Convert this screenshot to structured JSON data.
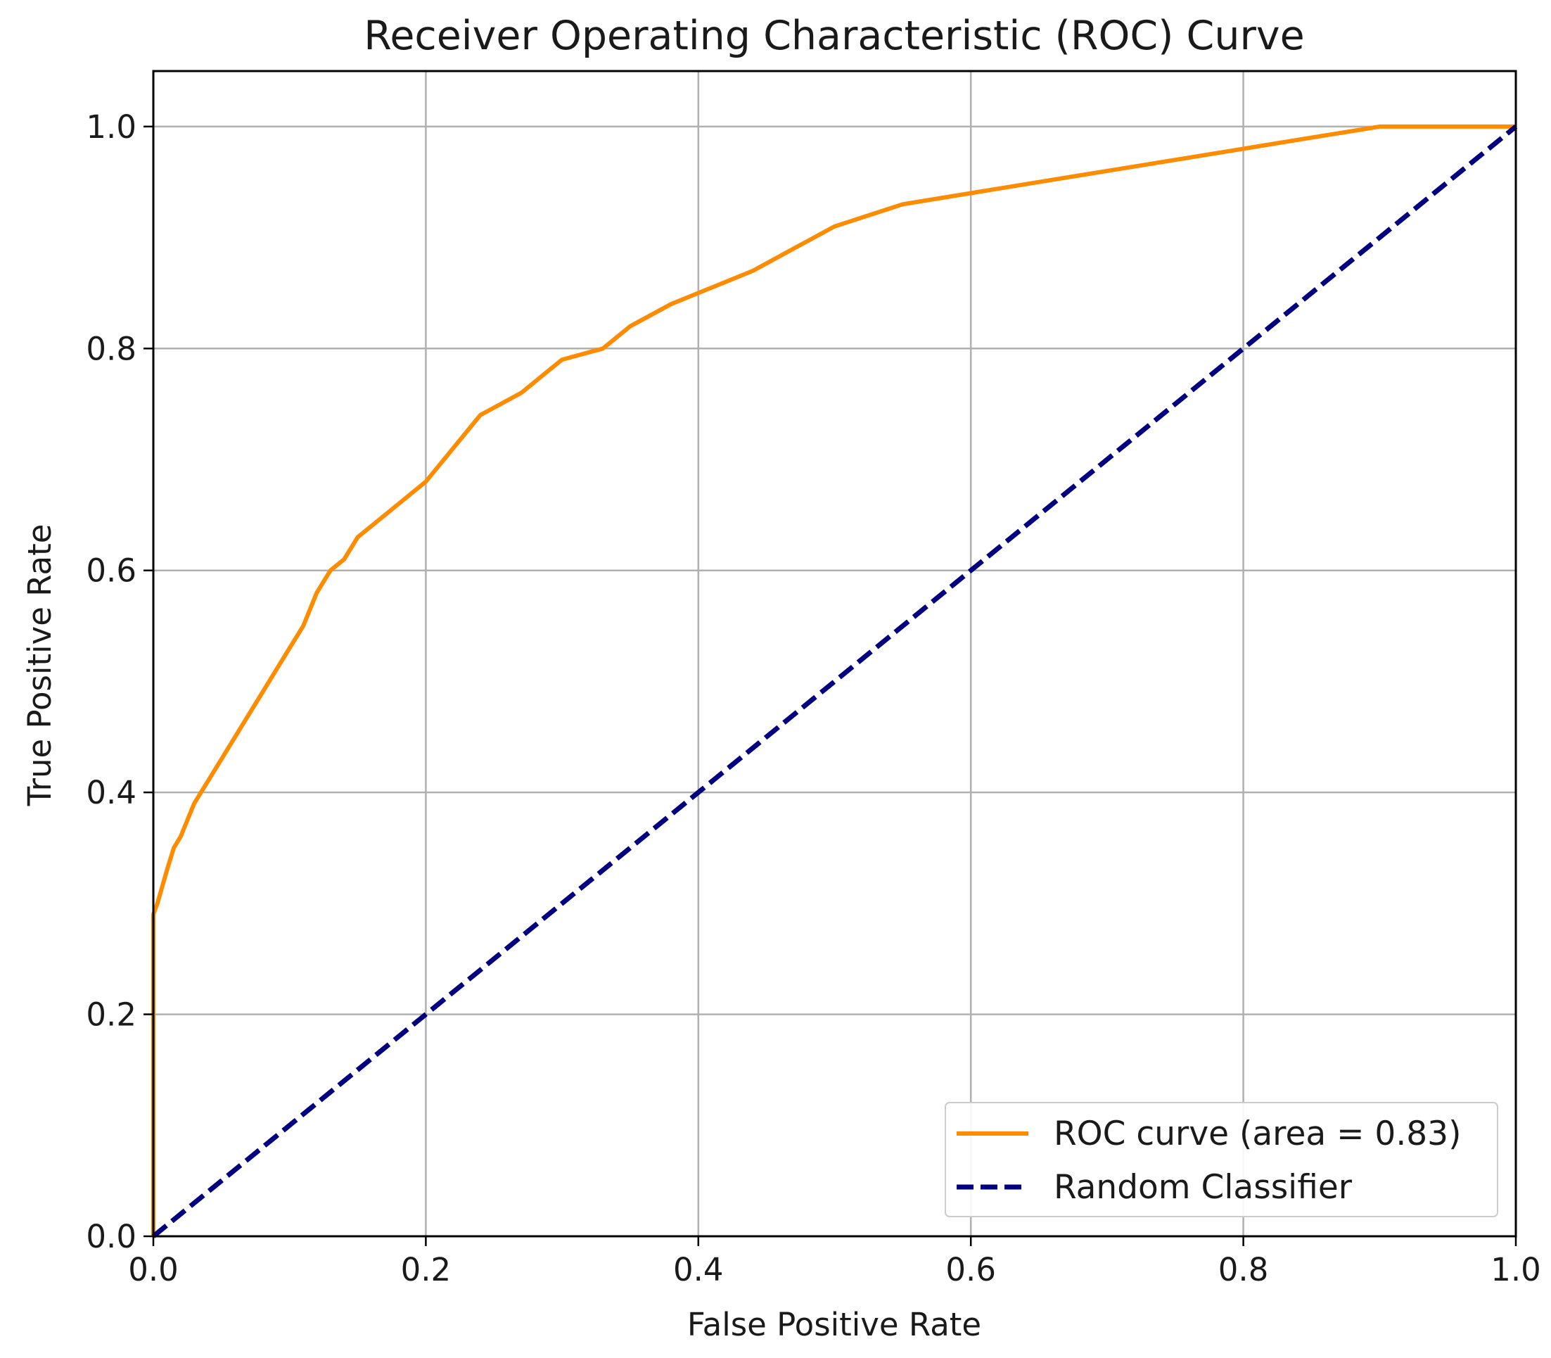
{
  "chart_data": {
    "type": "line",
    "title": "Receiver Operating Characteristic (ROC) Curve",
    "xlabel": "False Positive Rate",
    "ylabel": "True Positive Rate",
    "xlim": [
      0.0,
      1.0
    ],
    "ylim": [
      0.0,
      1.05
    ],
    "xticks": [
      "0.0",
      "0.2",
      "0.4",
      "0.6",
      "0.8",
      "1.0"
    ],
    "yticks": [
      "0.0",
      "0.2",
      "0.4",
      "0.6",
      "0.8",
      "1.0"
    ],
    "grid": true,
    "legend_position": "lower right",
    "series": [
      {
        "name": "ROC curve (area = 0.83)",
        "color": "#ff8c00",
        "style": "solid",
        "x": [
          0.0,
          0.0,
          0.003,
          0.01,
          0.015,
          0.02,
          0.03,
          0.035,
          0.05,
          0.07,
          0.08,
          0.09,
          0.1,
          0.11,
          0.12,
          0.13,
          0.14,
          0.15,
          0.17,
          0.19,
          0.2,
          0.22,
          0.24,
          0.27,
          0.3,
          0.33,
          0.35,
          0.38,
          0.4,
          0.44,
          0.47,
          0.5,
          0.55,
          0.6,
          0.65,
          0.7,
          0.75,
          0.8,
          0.85,
          0.9,
          0.93,
          1.0
        ],
        "y": [
          0.0,
          0.29,
          0.3,
          0.33,
          0.35,
          0.36,
          0.39,
          0.4,
          0.43,
          0.47,
          0.49,
          0.51,
          0.53,
          0.55,
          0.58,
          0.6,
          0.61,
          0.63,
          0.65,
          0.67,
          0.68,
          0.71,
          0.74,
          0.76,
          0.79,
          0.8,
          0.82,
          0.84,
          0.85,
          0.87,
          0.89,
          0.91,
          0.93,
          0.94,
          0.95,
          0.96,
          0.97,
          0.98,
          0.99,
          1.0,
          1.0,
          1.0
        ]
      },
      {
        "name": "Random Classifier",
        "color": "#000080",
        "style": "dashed",
        "x": [
          0.0,
          1.0
        ],
        "y": [
          0.0,
          1.0
        ]
      }
    ]
  }
}
